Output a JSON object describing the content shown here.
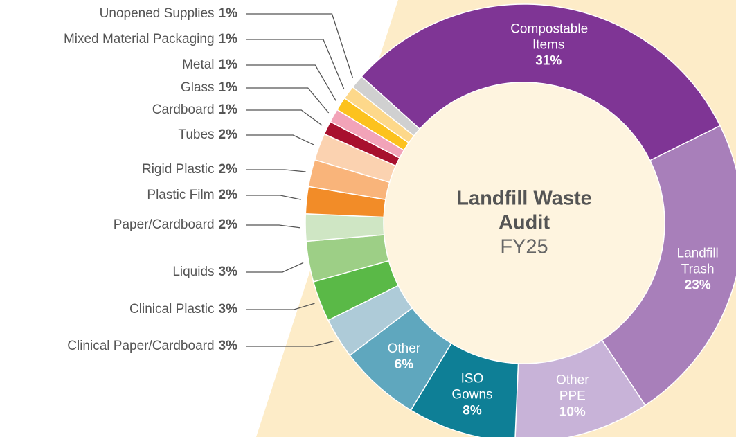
{
  "chart_data": {
    "type": "donut",
    "title": "Landfill Waste Audit",
    "subtitle": "FY25",
    "categories": [
      "Compostable Items",
      "Landfill Trash",
      "Other PPE",
      "ISO Gowns",
      "Other",
      "Clinical Paper/Cardboard",
      "Clinical Plastic",
      "Liquids",
      "Paper/Cardboard",
      "Plastic Film",
      "Rigid Plastic",
      "Tubes",
      "Cardboard",
      "Glass",
      "Metal",
      "Mixed Material Packaging",
      "Unopened Supplies"
    ],
    "values": [
      31,
      23,
      10,
      8,
      6,
      3,
      3,
      3,
      2,
      2,
      2,
      2,
      1,
      1,
      1,
      1,
      1
    ],
    "value_labels": [
      "31%",
      "23%",
      "10%",
      "8%",
      "6%",
      "3%",
      "3%",
      "3%",
      "2%",
      "2%",
      "2%",
      "2%",
      "1%",
      "1%",
      "1%",
      "1%",
      "1%"
    ],
    "colors": [
      "#7f3595",
      "#a87fba",
      "#c8b3d8",
      "#0e7f96",
      "#5fa7be",
      "#aecbd8",
      "#5ab947",
      "#9dcf86",
      "#cfe6c4",
      "#f28c28",
      "#f9b47a",
      "#fbd2b0",
      "#a8102e",
      "#f2a3b8",
      "#fcc21d",
      "#fdd88a",
      "#d0d0d0"
    ]
  }
}
